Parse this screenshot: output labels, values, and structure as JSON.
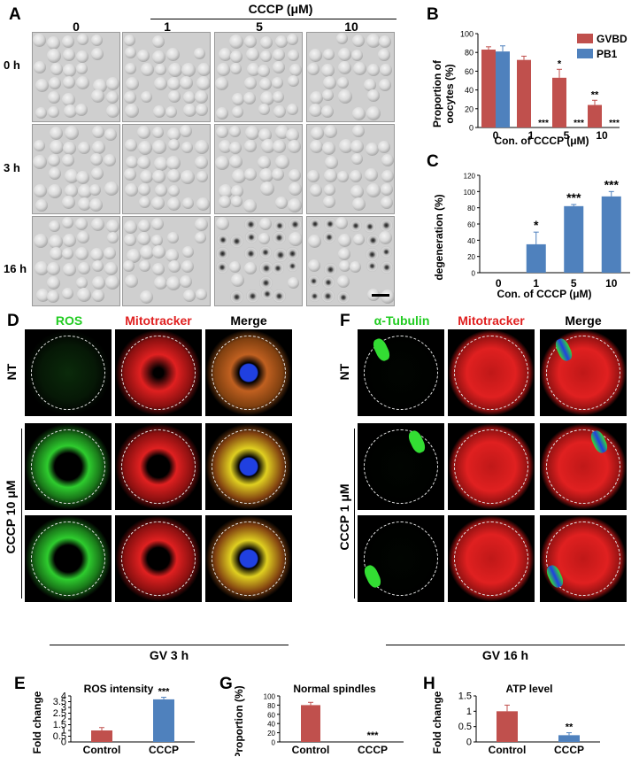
{
  "panel_labels": {
    "a": "A",
    "b": "B",
    "c": "C",
    "d": "D",
    "e": "E",
    "f": "F",
    "g": "G",
    "h": "H"
  },
  "panel_a": {
    "treatment_label": "CCCP (μM)",
    "column_labels": [
      "0",
      "1",
      "5",
      "10"
    ],
    "row_labels": [
      "0 h",
      "3 h",
      "16 h"
    ]
  },
  "panel_d": {
    "column_labels": [
      "ROS",
      "Mitotracker",
      "Merge"
    ],
    "row_label_nt": "NT",
    "row_label_treat": "CCCP 10 μM",
    "footer": "GV 3 h",
    "colors": {
      "ros": "#2ecc2e",
      "mito": "#e02020",
      "merge": "#e0d020",
      "dna": "#2040e0"
    }
  },
  "panel_f": {
    "column_labels": [
      "α-Tubulin",
      "Mitotracker",
      "Merge"
    ],
    "row_label_nt": "NT",
    "row_label_treat": "CCCP 1 μM",
    "footer": "GV 16 h"
  },
  "chart_data": [
    {
      "panel": "B",
      "type": "bar",
      "categories": [
        "0",
        "1",
        "5",
        "10"
      ],
      "series": [
        {
          "name": "GVBD",
          "color": "#c0504d",
          "values": [
            83,
            72,
            53,
            24
          ],
          "errors": [
            3,
            4,
            9,
            5
          ],
          "annotations": [
            "",
            "",
            "*",
            "**"
          ]
        },
        {
          "name": "PB1",
          "color": "#4f81bd",
          "values": [
            81,
            0,
            0,
            0
          ],
          "errors": [
            6,
            0,
            0,
            0
          ],
          "annotations": [
            "",
            "***",
            "***",
            "***"
          ]
        }
      ],
      "xlabel": "Con. of CCCP (μM)",
      "ylabel": "Proportion of oocytes (%)",
      "ylim": [
        0,
        100
      ],
      "yticks": [
        "0",
        "20",
        "40",
        "60",
        "80",
        "100"
      ],
      "legend": "top-right"
    },
    {
      "panel": "C",
      "type": "bar",
      "categories": [
        "0",
        "1",
        "5",
        "10"
      ],
      "series": [
        {
          "color": "#4f81bd",
          "values": [
            0,
            35,
            82,
            94
          ],
          "errors": [
            0,
            15,
            2,
            6
          ],
          "annotations": [
            "",
            "*",
            "***",
            "***"
          ]
        }
      ],
      "xlabel": "Con. of CCCP (μM)",
      "ylabel": "degeneration (%)",
      "ylim": [
        0,
        120
      ],
      "yticks": [
        "0",
        "20",
        "40",
        "60",
        "80",
        "100",
        "120"
      ]
    },
    {
      "panel": "E",
      "type": "bar",
      "title": "ROS intensity",
      "categories": [
        "Control",
        "CCCP"
      ],
      "colors": [
        "#c0504d",
        "#4f81bd"
      ],
      "values": [
        1.0,
        3.7
      ],
      "errors": [
        0.25,
        0.18
      ],
      "annotations": [
        "",
        "***"
      ],
      "ylabel": "Fold change",
      "ylim": [
        0,
        4
      ],
      "yticks": [
        "0",
        "0.5",
        "1",
        "1.5",
        "2",
        "2.5",
        "3",
        "3.5",
        "4"
      ]
    },
    {
      "panel": "G",
      "type": "bar",
      "title": "Normal spindles",
      "categories": [
        "Control",
        "CCCP"
      ],
      "colors": [
        "#c0504d",
        "#4f81bd"
      ],
      "values": [
        80,
        0
      ],
      "errors": [
        6,
        0
      ],
      "annotations": [
        "",
        "***"
      ],
      "ylabel": "Proportion (%)",
      "ylim": [
        0,
        100
      ],
      "yticks": [
        "0",
        "20",
        "40",
        "60",
        "80",
        "100"
      ]
    },
    {
      "panel": "H",
      "type": "bar",
      "title": "ATP level",
      "categories": [
        "Control",
        "CCCP"
      ],
      "colors": [
        "#c0504d",
        "#4f81bd"
      ],
      "values": [
        1.0,
        0.22
      ],
      "errors": [
        0.2,
        0.08
      ],
      "annotations": [
        "",
        "**"
      ],
      "ylabel": "Fold change",
      "ylim": [
        0,
        1.5
      ],
      "yticks": [
        "0",
        "0.5",
        "1",
        "1.5"
      ]
    }
  ]
}
